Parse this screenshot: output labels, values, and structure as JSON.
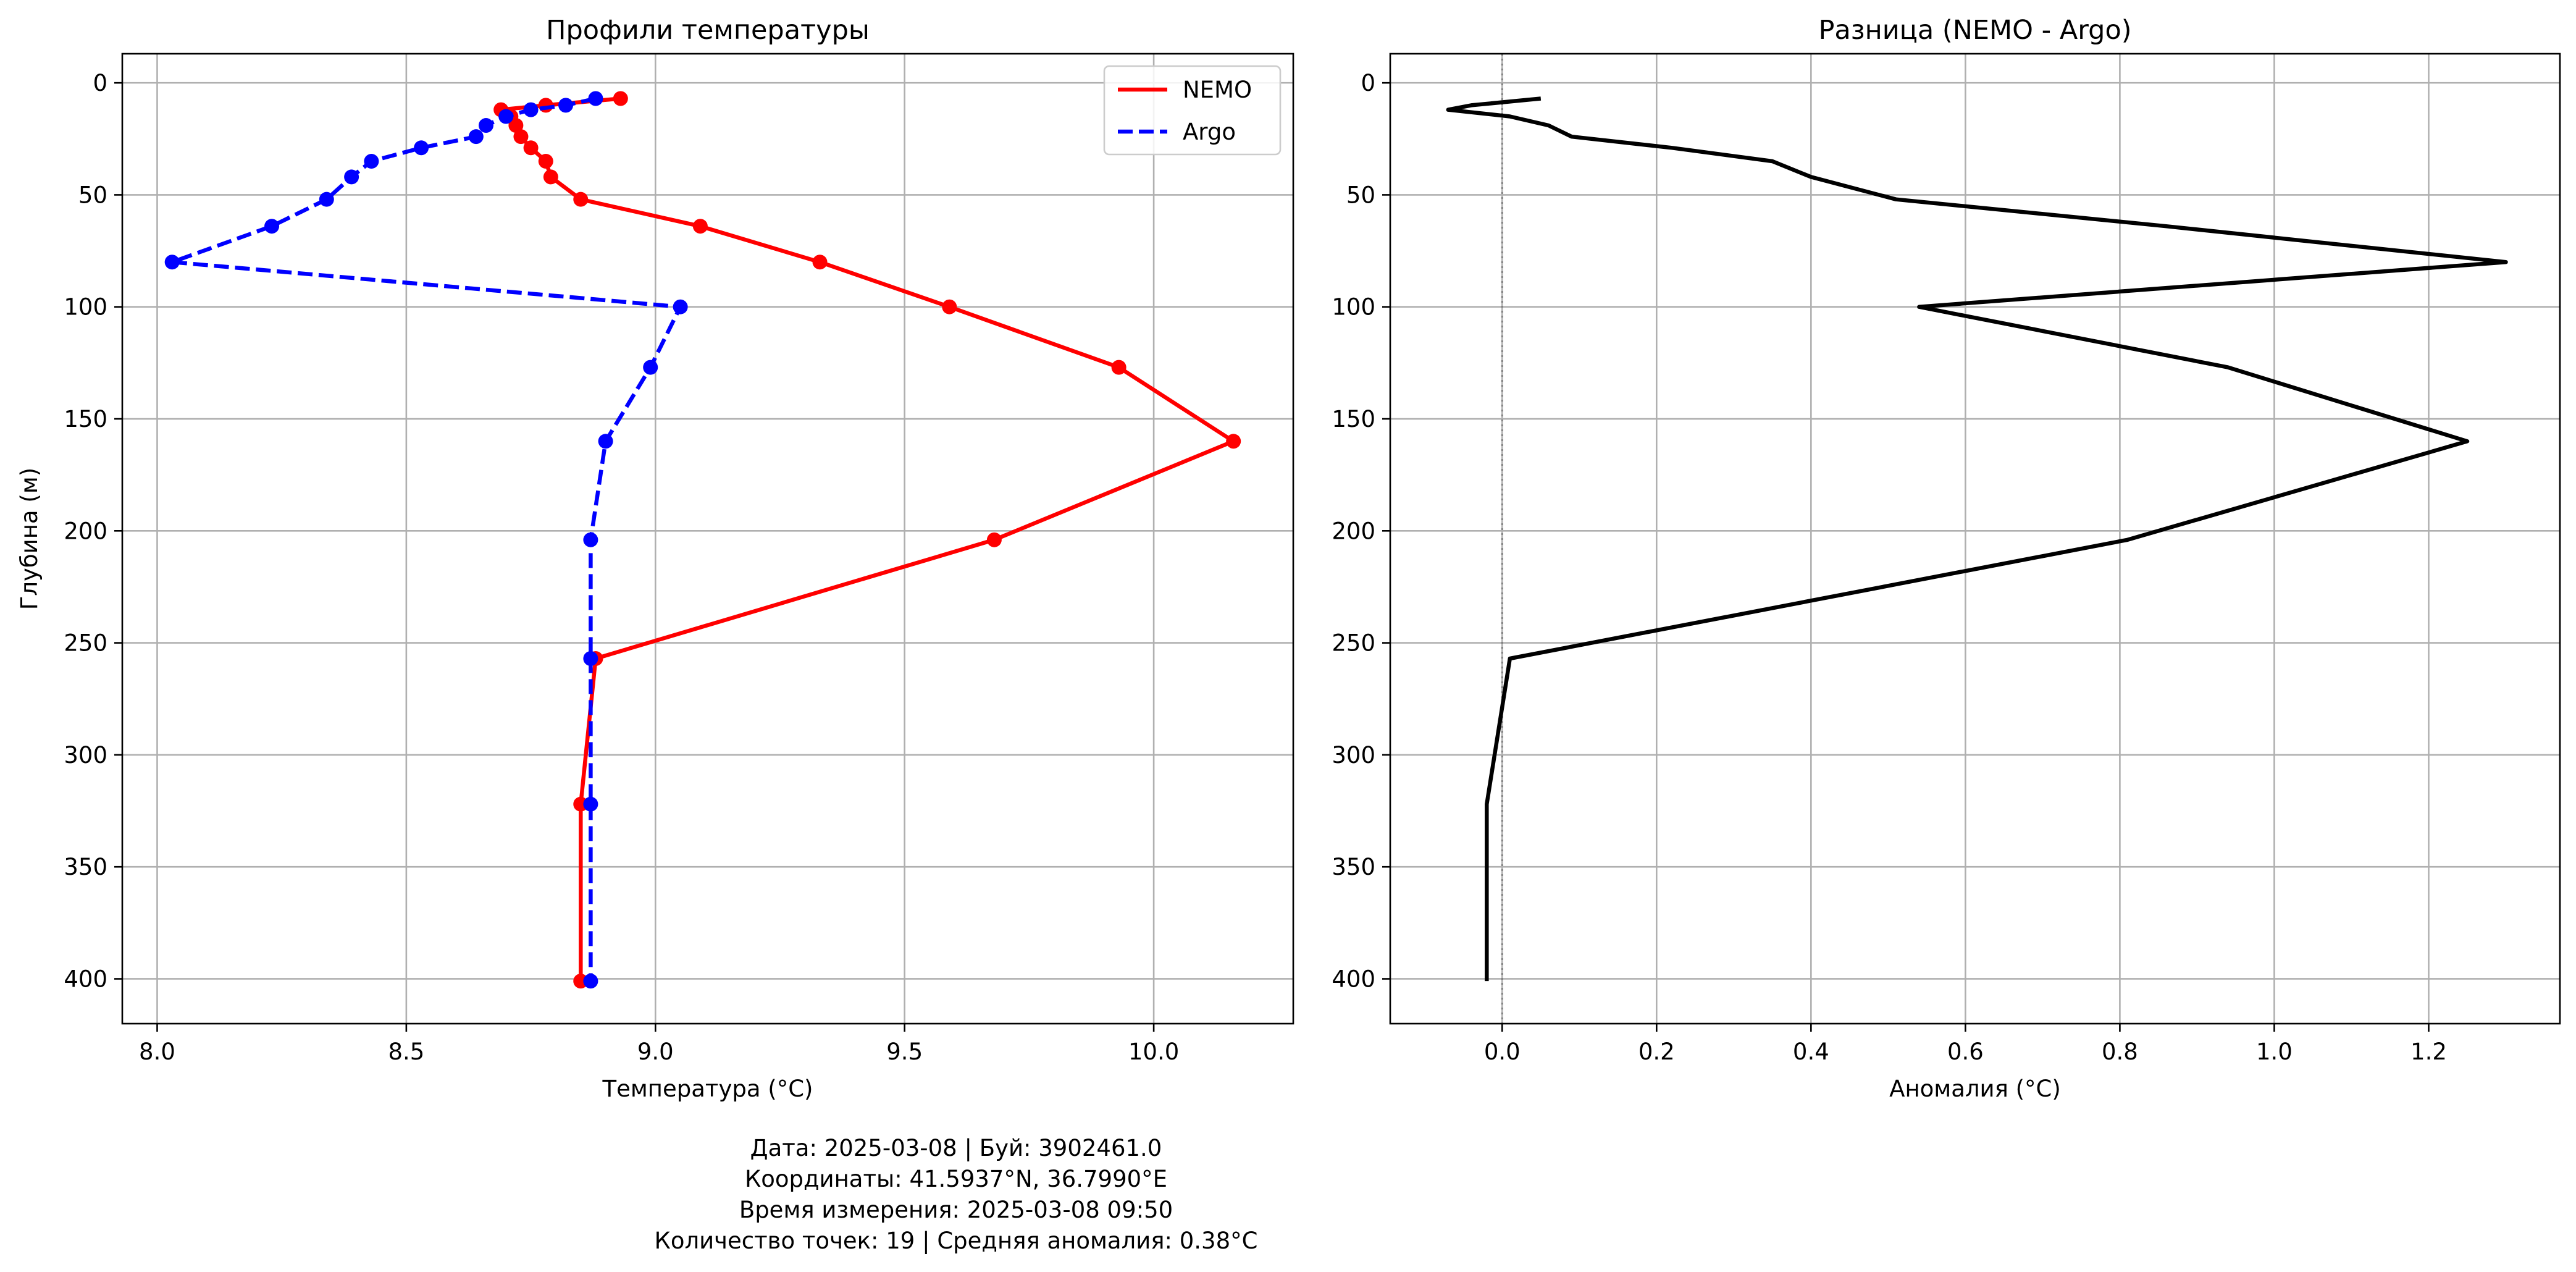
{
  "chart_data": [
    {
      "type": "line",
      "title": "Профили температуры",
      "xlabel": "Температура (°C)",
      "ylabel": "Глубина (м)",
      "xlim": [
        7.93,
        10.28
      ],
      "ylim": [
        420,
        -13
      ],
      "y_inverted": true,
      "xticks": [
        "8.0",
        "8.5",
        "9.0",
        "9.5",
        "10.0"
      ],
      "yticks": [
        "0",
        "50",
        "100",
        "150",
        "200",
        "250",
        "300",
        "350",
        "400"
      ],
      "grid": true,
      "legend": "top-right",
      "series": [
        {
          "name": "NEMO",
          "color": "#ff0000",
          "style": "solid",
          "markers": true,
          "points": [
            [
              8.93,
              7
            ],
            [
              8.78,
              10
            ],
            [
              8.69,
              12
            ],
            [
              8.71,
              15
            ],
            [
              8.72,
              19
            ],
            [
              8.73,
              24
            ],
            [
              8.75,
              29
            ],
            [
              8.78,
              35
            ],
            [
              8.79,
              42
            ],
            [
              8.85,
              52
            ],
            [
              9.09,
              64
            ],
            [
              9.33,
              80
            ],
            [
              9.59,
              100
            ],
            [
              9.93,
              127
            ],
            [
              10.16,
              160
            ],
            [
              9.68,
              204
            ],
            [
              8.88,
              257
            ],
            [
              8.85,
              322
            ],
            [
              8.85,
              401
            ]
          ]
        },
        {
          "name": "Argo",
          "color": "#0000ff",
          "style": "dashed",
          "markers": true,
          "points": [
            [
              8.88,
              7
            ],
            [
              8.82,
              10
            ],
            [
              8.75,
              12
            ],
            [
              8.7,
              15
            ],
            [
              8.66,
              19
            ],
            [
              8.64,
              24
            ],
            [
              8.53,
              29
            ],
            [
              8.43,
              35
            ],
            [
              8.39,
              42
            ],
            [
              8.34,
              52
            ],
            [
              8.23,
              64
            ],
            [
              8.03,
              80
            ],
            [
              9.05,
              100
            ],
            [
              8.99,
              127
            ],
            [
              8.9,
              160
            ],
            [
              8.87,
              204
            ],
            [
              8.87,
              257
            ],
            [
              8.87,
              322
            ],
            [
              8.87,
              401
            ]
          ]
        }
      ]
    },
    {
      "type": "line",
      "title": "Разница (NEMO - Argo)",
      "xlabel": "Аномалия (°C)",
      "ylabel": "",
      "xlim": [
        -0.145,
        1.37
      ],
      "ylim": [
        420,
        -13
      ],
      "y_inverted": true,
      "xticks": [
        "0.0",
        "0.2",
        "0.4",
        "0.6",
        "0.8",
        "1.0",
        "1.2"
      ],
      "yticks": [
        "0",
        "50",
        "100",
        "150",
        "200",
        "250",
        "300",
        "350",
        "400"
      ],
      "grid": true,
      "zero_line": true,
      "series": [
        {
          "color": "#000000",
          "style": "solid",
          "markers": false,
          "points": [
            [
              0.05,
              7
            ],
            [
              -0.04,
              10
            ],
            [
              -0.07,
              12
            ],
            [
              0.01,
              15
            ],
            [
              0.06,
              19
            ],
            [
              0.09,
              24
            ],
            [
              0.22,
              29
            ],
            [
              0.35,
              35
            ],
            [
              0.4,
              42
            ],
            [
              0.51,
              52
            ],
            [
              0.86,
              64
            ],
            [
              1.3,
              80
            ],
            [
              0.54,
              100
            ],
            [
              0.94,
              127
            ],
            [
              1.25,
              160
            ],
            [
              0.81,
              204
            ],
            [
              0.01,
              257
            ],
            [
              -0.02,
              322
            ],
            [
              -0.02,
              401
            ]
          ]
        }
      ]
    }
  ],
  "footer": {
    "line1": "Дата: 2025-03-08 | Буй: 3902461.0",
    "line2": "Координаты: 41.5937°N, 36.7990°E",
    "line3": "Время измерения: 2025-03-08 09:50",
    "line4": "Количество точек: 19 | Средняя аномалия: 0.38°C"
  }
}
